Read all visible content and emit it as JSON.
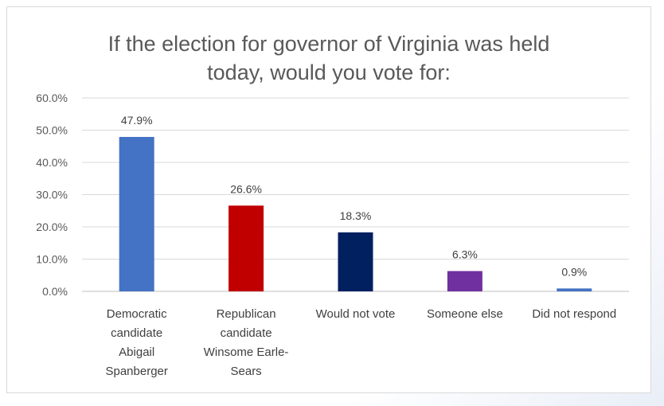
{
  "chart_data": {
    "type": "bar",
    "title_lines": [
      "If the election for governor of Virginia was held",
      "today, would you vote for:"
    ],
    "categories": [
      [
        "Democratic",
        "candidate",
        "Abigail",
        "Spanberger"
      ],
      [
        "Republican",
        "candidate",
        "Winsome Earle-",
        "Sears"
      ],
      [
        "Would not vote"
      ],
      [
        "Someone else"
      ],
      [
        "Did not respond"
      ]
    ],
    "values": [
      47.9,
      26.6,
      18.3,
      6.3,
      0.9
    ],
    "data_labels": [
      "47.9%",
      "26.6%",
      "18.3%",
      "6.3%",
      "0.9%"
    ],
    "colors": [
      "#4472c4",
      "#c00000",
      "#002060",
      "#7030a0",
      "#4472c4"
    ],
    "y_ticks": [
      "0.0%",
      "10.0%",
      "20.0%",
      "30.0%",
      "40.0%",
      "50.0%",
      "60.0%"
    ],
    "ylim": [
      0,
      60
    ],
    "gridlines": true,
    "legend": "none"
  }
}
